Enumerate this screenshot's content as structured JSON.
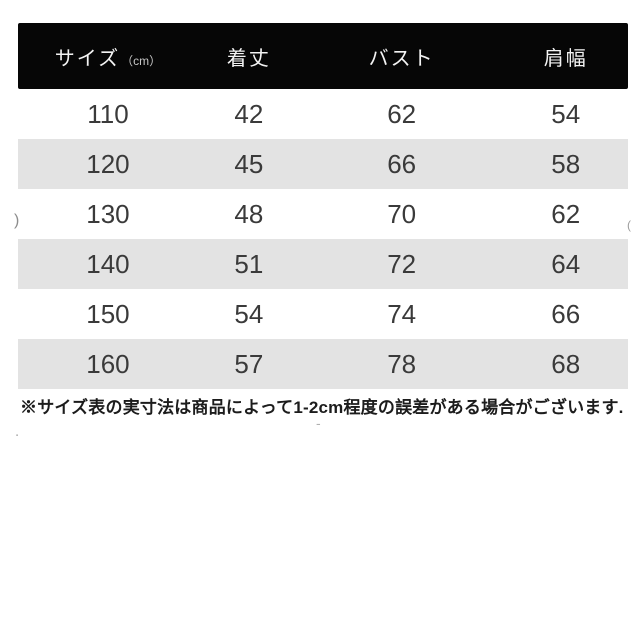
{
  "colors": {
    "header_bg": "#060606",
    "header_text": "#f3f3f3",
    "row_alt_bg": "#e3e3e3",
    "cell_text": "#3a3a3a",
    "note_text": "#1c1c1c",
    "background": "#ffffff"
  },
  "table": {
    "columns": [
      {
        "label": "サイズ",
        "unit": "（cm）"
      },
      {
        "label": "着丈",
        "unit": ""
      },
      {
        "label": "バスト",
        "unit": ""
      },
      {
        "label": "肩幅",
        "unit": ""
      }
    ],
    "rows": [
      [
        "110",
        "42",
        "62",
        "54"
      ],
      [
        "120",
        "45",
        "66",
        "58"
      ],
      [
        "130",
        "48",
        "70",
        "62"
      ],
      [
        "140",
        "51",
        "72",
        "64"
      ],
      [
        "150",
        "54",
        "74",
        "66"
      ],
      [
        "160",
        "57",
        "78",
        "68"
      ]
    ]
  },
  "note": "※サイズ表の実寸法は商品によって1-2cm程度の誤差がある場合がございます.",
  "artifacts": {
    "left_paren": ")",
    "right_paren": "(",
    "dot": ".",
    "dash": "-"
  },
  "chart_data": {
    "type": "table",
    "title": "",
    "columns": [
      "サイズ（cm）",
      "着丈",
      "バスト",
      "肩幅"
    ],
    "rows": [
      [
        110,
        42,
        62,
        54
      ],
      [
        120,
        45,
        66,
        58
      ],
      [
        130,
        48,
        70,
        62
      ],
      [
        140,
        51,
        72,
        64
      ],
      [
        150,
        54,
        74,
        66
      ],
      [
        160,
        57,
        78,
        68
      ]
    ],
    "note": "※サイズ表の実寸法は商品によって1-2cm程度の誤差がある場合がございます.",
    "layout_hints": {
      "header_style": "black-bar-white-text",
      "row_striping": "even-rows-light-gray",
      "alignment": "center"
    }
  }
}
